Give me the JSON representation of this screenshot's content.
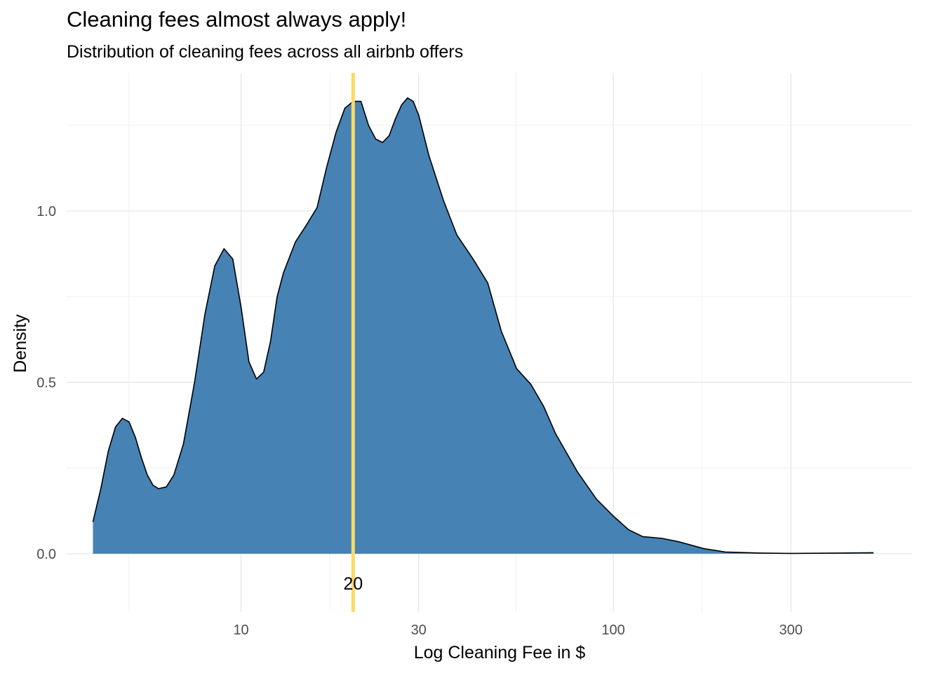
{
  "chart_data": {
    "type": "area",
    "title": "Cleaning fees almost always apply!",
    "subtitle": "Distribution of cleaning fees across all airbnb offers",
    "xlabel": "Log Cleaning Fee in $",
    "ylabel": "Density",
    "x_scale": "log10",
    "x_ticks": [
      {
        "value": 10,
        "label": "10"
      },
      {
        "value": 30,
        "label": "30"
      },
      {
        "value": 100,
        "label": "100"
      },
      {
        "value": 300,
        "label": "300"
      }
    ],
    "x_minor_ticks": [
      5,
      17.3,
      54.8,
      173
    ],
    "y_ticks": [
      {
        "value": 0,
        "label": "0.0"
      },
      {
        "value": 0.5,
        "label": "0.5"
      },
      {
        "value": 1,
        "label": "1.0"
      }
    ],
    "y_minor_ticks": [
      0.25,
      0.75,
      1.25
    ],
    "xlim": [
      3.4,
      635
    ],
    "ylim": [
      -0.17,
      1.403
    ],
    "grid": true,
    "series": [
      {
        "fill": "#4682b4",
        "stroke": "#000000",
        "x": [
          4,
          4.2,
          4.4,
          4.6,
          4.8,
          5.0,
          5.2,
          5.4,
          5.6,
          5.8,
          6.0,
          6.3,
          6.6,
          7.0,
          7.5,
          8.0,
          8.5,
          9.0,
          9.5,
          10.0,
          10.5,
          11.0,
          11.5,
          12.0,
          12.5,
          13.0,
          14.0,
          15.0,
          16.0,
          17.0,
          18.0,
          19.0,
          20.0,
          21.0,
          22.0,
          23.0,
          24.0,
          25.0,
          26.0,
          27.0,
          28.0,
          29.0,
          30.0,
          32.0,
          35.0,
          38.0,
          42.0,
          46.0,
          50.0,
          55.0,
          60.0,
          65.0,
          70.0,
          80.0,
          90.0,
          100.0,
          110.0,
          120.0,
          135.0,
          150.0,
          175.0,
          200.0,
          250.0,
          300.0,
          400.0,
          500.0
        ],
        "y": [
          0.093,
          0.19,
          0.3,
          0.37,
          0.395,
          0.385,
          0.34,
          0.28,
          0.23,
          0.2,
          0.19,
          0.195,
          0.23,
          0.32,
          0.5,
          0.7,
          0.84,
          0.89,
          0.86,
          0.72,
          0.56,
          0.51,
          0.53,
          0.62,
          0.75,
          0.82,
          0.91,
          0.96,
          1.01,
          1.13,
          1.23,
          1.3,
          1.32,
          1.32,
          1.25,
          1.21,
          1.2,
          1.22,
          1.27,
          1.31,
          1.33,
          1.32,
          1.28,
          1.16,
          1.03,
          0.93,
          0.86,
          0.79,
          0.65,
          0.54,
          0.495,
          0.43,
          0.35,
          0.24,
          0.16,
          0.11,
          0.07,
          0.05,
          0.045,
          0.035,
          0.015,
          0.005,
          0.002,
          0.001,
          0.002,
          0.003
        ]
      }
    ],
    "reference_line": {
      "x": 20,
      "label": "20",
      "color": "#ffd966"
    }
  }
}
